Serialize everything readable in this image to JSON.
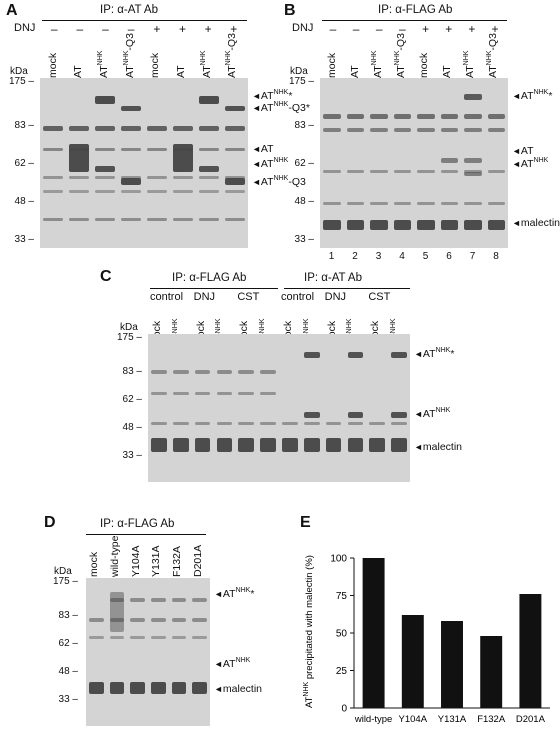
{
  "panel_a": {
    "letter": "A",
    "ip": "IP: α-AT Ab",
    "dnj": "DNJ",
    "dnj_signs": [
      "–",
      "–",
      "–",
      "–",
      "+",
      "+",
      "+",
      "+"
    ],
    "lanes": [
      "mock",
      "AT",
      "AT^NHK",
      "AT^NHK-Q3",
      "mock",
      "AT",
      "AT^NHK",
      "AT^NHK-Q3"
    ],
    "kda": "kDa",
    "ticks": [
      "175",
      "83",
      "62",
      "48",
      "33"
    ],
    "markers": [
      "AT^NHK*",
      "AT^NHK-Q3*",
      "AT",
      "AT^NHK",
      "AT^NHK-Q3"
    ]
  },
  "panel_b": {
    "letter": "B",
    "ip": "IP: α-FLAG Ab",
    "dnj": "DNJ",
    "dnj_signs": [
      "–",
      "–",
      "–",
      "–",
      "+",
      "+",
      "+",
      "+"
    ],
    "lanes": [
      "mock",
      "AT",
      "AT^NHK",
      "AT^NHK-Q3",
      "mock",
      "AT",
      "AT^NHK",
      "AT^NHK-Q3"
    ],
    "lane_numbers": [
      "1",
      "2",
      "3",
      "4",
      "5",
      "6",
      "7",
      "8"
    ],
    "kda": "kDa",
    "ticks": [
      "175",
      "83",
      "62",
      "48",
      "33"
    ],
    "markers": [
      "AT^NHK*",
      "AT",
      "AT^NHK",
      "malectin"
    ]
  },
  "panel_c": {
    "letter": "C",
    "ip_left": "IP: α-FLAG Ab",
    "ip_right": "IP: α-AT Ab",
    "groups": [
      "control",
      "DNJ",
      "CST",
      "control",
      "DNJ",
      "CST"
    ],
    "lanes": [
      "mock",
      "AT^NHK",
      "mock",
      "AT^NHK",
      "mock",
      "AT^NHK",
      "mock",
      "AT^NHK",
      "mock",
      "AT^NHK",
      "mock",
      "AT^NHK"
    ],
    "kda": "kDa",
    "ticks": [
      "175",
      "83",
      "62",
      "48",
      "33"
    ],
    "markers": [
      "AT^NHK*",
      "AT^NHK",
      "malectin"
    ]
  },
  "panel_d": {
    "letter": "D",
    "ip": "IP: α-FLAG Ab",
    "lanes": [
      "mock",
      "wild-type",
      "Y104A",
      "Y131A",
      "F132A",
      "D201A"
    ],
    "kda": "kDa",
    "ticks": [
      "175",
      "83",
      "62",
      "48",
      "33"
    ],
    "markers": [
      "AT^NHK*",
      "AT^NHK",
      "malectin"
    ]
  },
  "panel_e": {
    "letter": "E",
    "ylabel": "AT^NHK precipitated with malectin (%)",
    "yticks": [
      "0",
      "25",
      "50",
      "75",
      "100"
    ]
  },
  "chart_data": {
    "type": "bar",
    "categories": [
      "wild-type",
      "Y104A",
      "Y131A",
      "F132A",
      "D201A"
    ],
    "values": [
      100,
      62,
      58,
      48,
      76
    ],
    "ylabel": "AT^NHK precipitated with malectin (%)",
    "ylim": [
      0,
      100
    ],
    "grid": false
  }
}
